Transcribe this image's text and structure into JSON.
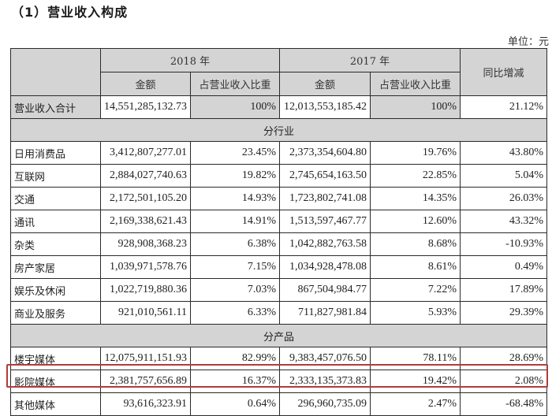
{
  "title": "（1）营业收入构成",
  "unit": "单位：元",
  "header": {
    "year_2018": "2018 年",
    "year_2017": "2017 年",
    "amount": "金额",
    "share": "占营业收入比重",
    "yoy": "同比增减"
  },
  "total": {
    "label": "营业收入合计",
    "amount_2018": "14,551,285,132.73",
    "share_2018": "100%",
    "amount_2017": "12,013,553,185.42",
    "share_2017": "100%",
    "yoy": "21.12%"
  },
  "sections": [
    {
      "title": "分行业",
      "rows": [
        {
          "label": "日用消费品",
          "amount_2018": "3,412,807,277.01",
          "share_2018": "23.45%",
          "amount_2017": "2,373,354,604.80",
          "share_2017": "19.76%",
          "yoy": "43.80%"
        },
        {
          "label": "互联网",
          "amount_2018": "2,884,027,740.63",
          "share_2018": "19.82%",
          "amount_2017": "2,745,654,163.50",
          "share_2017": "22.85%",
          "yoy": "5.04%"
        },
        {
          "label": "交通",
          "amount_2018": "2,172,501,105.20",
          "share_2018": "14.93%",
          "amount_2017": "1,723,802,741.08",
          "share_2017": "14.35%",
          "yoy": "26.03%"
        },
        {
          "label": "通讯",
          "amount_2018": "2,169,338,621.43",
          "share_2018": "14.91%",
          "amount_2017": "1,513,597,467.77",
          "share_2017": "12.60%",
          "yoy": "43.32%"
        },
        {
          "label": "杂类",
          "amount_2018": "928,908,368.23",
          "share_2018": "6.38%",
          "amount_2017": "1,042,882,763.58",
          "share_2017": "8.68%",
          "yoy": "-10.93%"
        },
        {
          "label": "房产家居",
          "amount_2018": "1,039,971,578.76",
          "share_2018": "7.15%",
          "amount_2017": "1,034,928,478.08",
          "share_2017": "8.61%",
          "yoy": "0.49%"
        },
        {
          "label": "娱乐及休闲",
          "amount_2018": "1,022,719,880.36",
          "share_2018": "7.03%",
          "amount_2017": "867,504,984.77",
          "share_2017": "7.22%",
          "yoy": "17.89%"
        },
        {
          "label": "商业及服务",
          "amount_2018": "921,010,561.11",
          "share_2018": "6.33%",
          "amount_2017": "711,827,981.84",
          "share_2017": "5.93%",
          "yoy": "29.39%"
        }
      ]
    },
    {
      "title": "分产品",
      "rows": [
        {
          "label": "楼宇媒体",
          "amount_2018": "12,075,911,151.93",
          "share_2018": "82.99%",
          "amount_2017": "9,383,457,076.50",
          "share_2017": "78.11%",
          "yoy": "28.69%"
        },
        {
          "label": "影院媒体",
          "amount_2018": "2,381,757,656.89",
          "share_2018": "16.37%",
          "amount_2017": "2,333,135,373.83",
          "share_2017": "19.42%",
          "yoy": "2.08%"
        },
        {
          "label": "其他媒体",
          "amount_2018": "93,616,323.91",
          "share_2018": "0.64%",
          "amount_2017": "296,960,735.09",
          "share_2017": "2.47%",
          "yoy": "-68.48%"
        }
      ]
    }
  ],
  "highlight": {
    "row_label": "影院媒体",
    "color": "#b53a3a"
  },
  "colors": {
    "header_bg": "#d4d4d4",
    "border": "#2a2a2a"
  }
}
